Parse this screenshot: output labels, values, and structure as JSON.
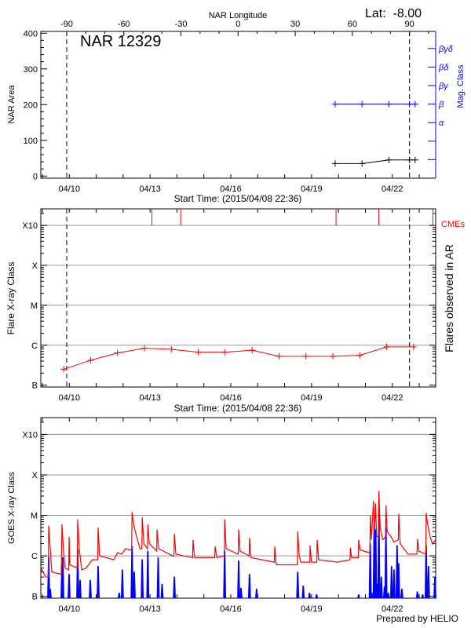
{
  "header": {
    "longitude_title": "NAR Longitude",
    "latitude_label": "Lat:  -8.00",
    "region_label": "NAR 12329"
  },
  "footer": {
    "credit": "Prepared by HELIO"
  },
  "colors": {
    "area": "#000000",
    "mag_class": "#0000ff",
    "flares": "#ff0000",
    "cme": "#ff0000",
    "goes_long": "#ff0000",
    "goes_short": "#0000ff",
    "grid": "#999999"
  },
  "chart_data": [
    {
      "type": "line",
      "title": "NAR 12329",
      "xlabel": "Start Time: (2015/04/08 22:36)",
      "ylabel": "NAR Area",
      "y2label": "Mag. Class",
      "top_xlabel": "NAR Longitude",
      "top_xticks": [
        -90,
        -60,
        -30,
        0,
        30,
        60,
        90
      ],
      "top_xlim": [
        -98,
        105
      ],
      "xlim": [
        "04/08 22:36",
        "04/23 14:40"
      ],
      "xticks": [
        "04/10",
        "04/13",
        "04/16",
        "04/19",
        "04/22"
      ],
      "ylim": [
        -6,
        405
      ],
      "yticks": [
        0,
        100,
        200,
        300,
        400
      ],
      "y2_ticklabels": [
        "α",
        "β",
        "βγ",
        "βδ",
        "βγδ"
      ],
      "limb_crossings": [
        "04/09 21:40",
        "04/22 15:20"
      ],
      "grid": false,
      "series": [
        {
          "kind": "area",
          "points": [
            [
              "04/19 21:00",
              35
            ],
            [
              "04/20 21:00",
              35
            ],
            [
              "04/21 21:00",
              45
            ],
            [
              "04/22 15:20",
              45
            ],
            [
              "04/22 20:20",
              45
            ]
          ]
        },
        {
          "kind": "mag_class",
          "points": [
            [
              "04/19 21:00",
              "β"
            ],
            [
              "04/20 21:00",
              "β"
            ],
            [
              "04/21 21:00",
              "β"
            ],
            [
              "04/22 15:20",
              "β"
            ],
            [
              "04/22 20:20",
              "β"
            ]
          ]
        }
      ]
    },
    {
      "type": "line",
      "xlabel": "Start Time: (2015/04/08 22:36)",
      "ylabel": "Flare X-ray Class",
      "y2label": "Flares observed in AR",
      "cme_label": "CMEs",
      "xlim": [
        "04/08 22:36",
        "04/23 14:40"
      ],
      "xticks": [
        "04/10",
        "04/13",
        "04/16",
        "04/19",
        "04/22"
      ],
      "yscale": "log",
      "ylim": [
        9e-08,
        0.0026
      ],
      "yticks": [
        [
          "B",
          1e-07
        ],
        [
          "C",
          1e-06
        ],
        [
          "M",
          1e-05
        ],
        [
          "X",
          0.0001
        ],
        [
          "X10",
          0.001
        ]
      ],
      "grid": true,
      "limb_crossings": [
        "04/09 21:40",
        "04/22 15:20"
      ],
      "flares": [
        [
          "04/09 19:00",
          "B2.5"
        ],
        [
          "04/10 19:00",
          "B4.2"
        ],
        [
          "04/11 19:00",
          "B6.4"
        ],
        [
          "04/12 19:00",
          "B8.4"
        ],
        [
          "04/13 19:00",
          "B7.9"
        ],
        [
          "04/14 19:00",
          "B6.7"
        ],
        [
          "04/15 19:00",
          "B6.7"
        ],
        [
          "04/16 19:00",
          "B7.5"
        ],
        [
          "04/17 19:00",
          "B5.3"
        ],
        [
          "04/18 19:00",
          "B5.3"
        ],
        [
          "04/19 19:00",
          "B5.3"
        ],
        [
          "04/20 19:00",
          "B5.6"
        ],
        [
          "04/21 19:00",
          "B9.1"
        ],
        [
          "04/22 19:00",
          "B9.1"
        ]
      ],
      "cmes": [
        "04/13 01:40",
        "04/14 03:20",
        "04/19 21:50",
        "04/21 12:00",
        "04/23 12:15"
      ]
    },
    {
      "type": "line",
      "ylabel": "GOES X-ray Class",
      "xlim": [
        "04/08 22:36",
        "04/23 14:40"
      ],
      "xticks": [
        "04/10",
        "04/13",
        "04/16",
        "04/19",
        "04/22"
      ],
      "yscale": "log",
      "ylim": [
        9e-08,
        0.0026
      ],
      "yticks": [
        [
          "B",
          1e-07
        ],
        [
          "C",
          1e-06
        ],
        [
          "M",
          1e-05
        ],
        [
          "X",
          0.0001
        ],
        [
          "X10",
          0.001
        ]
      ],
      "grid": true,
      "series": [
        {
          "channel": "long",
          "points": [
            [
              "04/08 22:36",
              5e-07
            ],
            [
              "04/09 03:00",
              3e-07
            ],
            [
              "04/09 05:15",
              3e-07
            ],
            [
              "04/09 05:36",
              5.6e-06
            ],
            [
              "04/09 07:00",
              1.5e-06
            ],
            [
              "04/09 08:24",
              4e-07
            ],
            [
              "04/09 16:48",
              3.5e-07
            ],
            [
              "04/09 17:30",
              6e-06
            ],
            [
              "04/09 18:54",
              1.2e-06
            ],
            [
              "04/09 20:18",
              5e-07
            ],
            [
              "04/09 23:30",
              4.5e-07
            ],
            [
              "04/09 23:48",
              3e-06
            ],
            [
              "04/10 00:30",
              6e-07
            ],
            [
              "04/10 07:00",
              5e-07
            ],
            [
              "04/10 07:30",
              8e-06
            ],
            [
              "04/10 08:54",
              1.5e-06
            ],
            [
              "04/10 11:00",
              4.5e-07
            ],
            [
              "04/10 15:00",
              5e-07
            ],
            [
              "04/10 20:30",
              8e-07
            ],
            [
              "04/11 01:20",
              8e-07
            ],
            [
              "04/11 01:42",
              5e-06
            ],
            [
              "04/11 03:00",
              1e-06
            ],
            [
              "04/11 15:40",
              8e-07
            ],
            [
              "04/11 19:00",
              1.2e-06
            ],
            [
              "04/11 22:40",
              1.1e-06
            ],
            [
              "04/12 02:20",
              1.5e-06
            ],
            [
              "04/12 05:50",
              1.4e-06
            ],
            [
              "04/12 07:36",
              1.4e-06
            ],
            [
              "04/12 07:57",
              1.2e-05
            ],
            [
              "04/12 09:20",
              6e-06
            ],
            [
              "04/12 12:00",
              3e-06
            ],
            [
              "04/12 15:00",
              1.5e-06
            ],
            [
              "04/12 16:40",
              1.5e-06
            ],
            [
              "04/12 17:00",
              9e-06
            ],
            [
              "04/12 18:30",
              2e-06
            ],
            [
              "04/12 21:40",
              1.5e-06
            ],
            [
              "04/12 22:00",
              6e-06
            ],
            [
              "04/12 23:20",
              2e-06
            ],
            [
              "04/13 06:00",
              1.3e-06
            ],
            [
              "04/13 06:10",
              4.5e-06
            ],
            [
              "04/13 07:40",
              1.5e-06
            ],
            [
              "04/13 20:20",
              1e-06
            ],
            [
              "04/13 21:20",
              1e-06
            ],
            [
              "04/13 21:40",
              3.5e-06
            ],
            [
              "04/13 23:00",
              1.1e-06
            ],
            [
              "04/14 14:00",
              9e-07
            ],
            [
              "04/14 14:20",
              2.5e-06
            ],
            [
              "04/14 15:40",
              9e-07
            ],
            [
              "04/15 09:40",
              9e-07
            ],
            [
              "04/15 10:00",
              1.7e-06
            ],
            [
              "04/15 11:30",
              9e-07
            ],
            [
              "04/15 18:10",
              1e-06
            ],
            [
              "04/15 18:30",
              8e-06
            ],
            [
              "04/15 19:50",
              1.5e-06
            ],
            [
              "04/16 06:40",
              1.1e-06
            ],
            [
              "04/16 07:00",
              4.5e-06
            ],
            [
              "04/16 08:20",
              1.3e-06
            ],
            [
              "04/16 16:20",
              1e-06
            ],
            [
              "04/16 16:40",
              2.8e-06
            ],
            [
              "04/16 18:00",
              9e-07
            ],
            [
              "04/17 14:50",
              7e-07
            ],
            [
              "04/17 15:10",
              1.7e-06
            ],
            [
              "04/17 16:30",
              6e-07
            ],
            [
              "04/18 11:20",
              6e-07
            ],
            [
              "04/18 11:40",
              4e-06
            ],
            [
              "04/18 13:00",
              1e-06
            ],
            [
              "04/18 14:30",
              7e-07
            ],
            [
              "04/18 22:30",
              7e-07
            ],
            [
              "04/18 22:40",
              1.8e-06
            ],
            [
              "04/19 00:00",
              7e-07
            ],
            [
              "04/19 04:40",
              7e-07
            ],
            [
              "04/19 05:00",
              2.5e-06
            ],
            [
              "04/19 06:20",
              8e-07
            ],
            [
              "04/19 23:10",
              7e-07
            ],
            [
              "04/20 10:20",
              8e-07
            ],
            [
              "04/20 10:40",
              1.6e-06
            ],
            [
              "04/20 11:40",
              9e-07
            ],
            [
              "04/20 17:40",
              9e-07
            ],
            [
              "04/20 18:00",
              2.5e-06
            ],
            [
              "04/20 19:20",
              1.4e-06
            ],
            [
              "04/21 03:00",
              1.2e-06
            ],
            [
              "04/21 04:00",
              1.3e-06
            ],
            [
              "04/21 04:20",
              1e-05
            ],
            [
              "04/21 05:20",
              2.5e-06
            ],
            [
              "04/21 07:10",
              2.3e-05
            ],
            [
              "04/21 08:10",
              4e-06
            ],
            [
              "04/21 09:00",
              2e-05
            ],
            [
              "04/21 10:00",
              3e-06
            ],
            [
              "04/21 11:40",
              3e-06
            ],
            [
              "04/21 12:00",
              4e-05
            ],
            [
              "04/21 13:10",
              5e-06
            ],
            [
              "04/21 15:30",
              2.5e-06
            ],
            [
              "04/21 18:00",
              3e-06
            ],
            [
              "04/21 18:20",
              1.8e-05
            ],
            [
              "04/21 19:20",
              4e-06
            ],
            [
              "04/21 22:40",
              3e-06
            ],
            [
              "04/22 01:30",
              2.2e-06
            ],
            [
              "04/22 05:20",
              2.5e-06
            ],
            [
              "04/22 05:40",
              1.1e-05
            ],
            [
              "04/22 07:00",
              2e-06
            ],
            [
              "04/22 14:00",
              1.1e-06
            ],
            [
              "04/22 22:00",
              1.1e-06
            ],
            [
              "04/22 22:20",
              2.6e-06
            ],
            [
              "04/22 23:40",
              1.3e-06
            ],
            [
              "04/23 05:50",
              1.1e-06
            ],
            [
              "04/23 06:10",
              1.15e-05
            ],
            [
              "04/23 07:30",
              6e-06
            ],
            [
              "04/23 09:40",
              3e-06
            ],
            [
              "04/23 11:40",
              2e-06
            ],
            [
              "04/23 14:30",
              2.5e-06
            ]
          ]
        },
        {
          "channel": "short",
          "points": [
            [
              "04/09 05:36",
              9e-07
            ],
            [
              "04/09 07:00",
              1.5e-07
            ],
            [
              "04/09 17:30",
              6e-07
            ],
            [
              "04/09 18:12",
              9e-07
            ],
            [
              "04/09 23:48",
              3.5e-07
            ],
            [
              "04/10 07:30",
              1.4e-06
            ],
            [
              "04/10 09:36",
              2.5e-07
            ],
            [
              "04/10 18:42",
              2.5e-07
            ],
            [
              "04/11 01:42",
              5.5e-07
            ],
            [
              "04/11 20:30",
              1.2e-07
            ],
            [
              "04/11 23:18",
              4.5e-07
            ],
            [
              "04/12 07:57",
              1.7e-06
            ],
            [
              "04/12 09:54",
              4e-07
            ],
            [
              "04/12 17:00",
              8e-07
            ],
            [
              "04/12 22:00",
              1.3e-06
            ],
            [
              "04/13 07:15",
              9e-07
            ],
            [
              "04/13 10:45",
              2e-07
            ],
            [
              "04/13 21:40",
              3e-07
            ],
            [
              "04/15 18:30",
              1.3e-06
            ],
            [
              "04/16 07:00",
              7.5e-07
            ],
            [
              "04/16 09:06",
              1.6e-07
            ],
            [
              "04/16 16:40",
              3.5e-07
            ],
            [
              "04/16 23:00",
              1.5e-07
            ],
            [
              "04/18 11:40",
              4e-07
            ],
            [
              "04/18 16:36",
              1.8e-07
            ],
            [
              "04/18 22:12",
              1.2e-07
            ],
            [
              "04/19 04:30",
              1.1e-07
            ],
            [
              "04/20 18:00",
              1.1e-07
            ],
            [
              "04/21 04:20",
              2e-06
            ],
            [
              "04/21 05:40",
              1.2e-07
            ],
            [
              "04/21 07:50",
              5.5e-06
            ],
            [
              "04/21 09:12",
              4.5e-06
            ],
            [
              "04/21 10:36",
              2e-07
            ],
            [
              "04/21 12:00",
              1.2e-05
            ],
            [
              "04/21 14:10",
              3e-07
            ],
            [
              "04/21 17:00",
              1.7e-07
            ],
            [
              "04/21 18:20",
              5e-06
            ],
            [
              "04/21 20:30",
              1.2e-07
            ],
            [
              "04/21 23:20",
              5.5e-07
            ],
            [
              "04/22 01:30",
              4.5e-07
            ],
            [
              "04/22 04:15",
              1.8e-06
            ],
            [
              "04/22 05:40",
              6.5e-07
            ],
            [
              "04/22 08:30",
              1.5e-07
            ],
            [
              "04/22 22:20",
              1.3e-07
            ],
            [
              "04/23 03:00",
              1.1e-07
            ],
            [
              "04/23 06:10",
              1.8e-06
            ],
            [
              "04/23 08:15",
              5.5e-07
            ],
            [
              "04/23 14:00",
              3e-07
            ]
          ]
        }
      ]
    }
  ]
}
